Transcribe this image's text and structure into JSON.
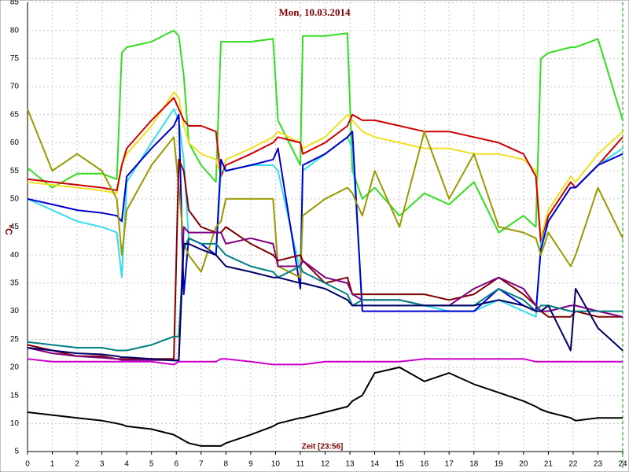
{
  "chart_data": {
    "type": "line",
    "title": "Mon, 10.03.2014",
    "x_label": "Zeit [23:56]",
    "y_label": "°C",
    "x": [
      0,
      1,
      2,
      3,
      3.6,
      3.8,
      4,
      5,
      5.9,
      6.1,
      6.3,
      6.5,
      7,
      7.6,
      7.8,
      8,
      9,
      9.9,
      10.1,
      11,
      11.1,
      12,
      12.9,
      13.1,
      13.5,
      14,
      15,
      16,
      17,
      18,
      19,
      20,
      20.5,
      20.7,
      21,
      21.9,
      22.1,
      23,
      24
    ],
    "xlim": [
      0,
      24
    ],
    "xticks": [
      0,
      1,
      2,
      3,
      4,
      5,
      6,
      7,
      8,
      9,
      10,
      11,
      12,
      13,
      14,
      15,
      16,
      17,
      18,
      19,
      20,
      21,
      22,
      23,
      24
    ],
    "ylim": [
      5,
      85
    ],
    "yticks": [
      5,
      10,
      15,
      20,
      25,
      30,
      35,
      40,
      45,
      50,
      55,
      60,
      65,
      70,
      75,
      80,
      85
    ],
    "grid": true,
    "series": [
      {
        "color": "#33dd22",
        "values": [
          55.5,
          52,
          54.5,
          54.5,
          53.5,
          76,
          77,
          78,
          80,
          79,
          72,
          60,
          56,
          53,
          78,
          78,
          78,
          78.5,
          64,
          56,
          79,
          79,
          79.5,
          55,
          50,
          52,
          47,
          51,
          49,
          53,
          44,
          47,
          45,
          75,
          76,
          77,
          77,
          78.5,
          64
        ]
      },
      {
        "color": "#f0e020",
        "values": [
          53,
          52.5,
          52,
          51.5,
          51,
          56,
          58,
          63,
          69,
          68,
          63,
          60,
          58,
          57,
          54,
          57,
          59,
          61,
          62,
          60,
          59,
          61,
          65,
          64,
          62,
          61,
          60,
          59,
          59,
          58,
          58,
          57,
          55,
          43,
          48,
          54,
          53,
          58,
          62
        ]
      },
      {
        "color": "#cc0000",
        "values": [
          53.5,
          53,
          52.5,
          52,
          51.5,
          56,
          59,
          64,
          68,
          66,
          64,
          63,
          63,
          62,
          54,
          56,
          58,
          60,
          61,
          60,
          58,
          60,
          63,
          65,
          64,
          64,
          63,
          62,
          62,
          61,
          60,
          58,
          54,
          42,
          47,
          53,
          52,
          56,
          61
        ]
      },
      {
        "color": "#33ddee",
        "values": [
          50,
          48,
          46,
          45,
          44,
          36,
          53,
          60,
          66,
          64,
          57,
          43,
          42,
          40,
          55,
          55,
          56,
          56,
          55,
          37,
          55,
          58,
          61,
          59,
          31,
          31,
          31,
          31,
          30,
          30,
          32,
          30,
          29,
          42,
          46,
          52,
          52,
          56,
          59
        ]
      },
      {
        "color": "#0000cc",
        "values": [
          50,
          49,
          48,
          47.5,
          47,
          46,
          54,
          59,
          63,
          65,
          33,
          43,
          42,
          40,
          57,
          55,
          56,
          57,
          59,
          34,
          56,
          58,
          61,
          62,
          30,
          30,
          30,
          30,
          30,
          30,
          34,
          31,
          30,
          41,
          46,
          52,
          52,
          56,
          58
        ]
      },
      {
        "color": "#999900",
        "values": [
          66,
          55,
          58,
          55,
          50,
          40,
          48,
          56,
          61,
          52,
          42,
          40,
          37,
          45,
          46,
          50,
          50,
          50,
          38,
          36,
          47,
          50,
          52,
          51,
          47,
          55,
          45,
          62,
          50,
          58,
          45,
          44,
          43,
          40,
          44,
          38,
          40,
          52,
          43
        ]
      },
      {
        "color": "#800000",
        "values": [
          24,
          23,
          22,
          22,
          21.5,
          21.5,
          21.5,
          21.5,
          21.5,
          57,
          55,
          48,
          45,
          44,
          44,
          45,
          42,
          40,
          39,
          40,
          39,
          35,
          36,
          33,
          33,
          33,
          33,
          33,
          32,
          33,
          36,
          33,
          31,
          30,
          29,
          29,
          30,
          29,
          29
        ]
      },
      {
        "color": "#800080",
        "values": [
          23.5,
          22.5,
          22,
          21.7,
          21.5,
          21.3,
          21.3,
          21.3,
          21.3,
          21.3,
          45,
          44,
          44,
          44,
          44,
          42,
          43,
          42,
          38,
          38,
          39,
          36,
          35,
          33,
          32,
          32,
          32,
          31,
          31,
          34,
          36,
          34,
          31,
          30,
          30,
          31,
          31,
          30,
          29
        ]
      },
      {
        "color": "#008080",
        "values": [
          24.5,
          24,
          23.5,
          23.5,
          23,
          23,
          23,
          24,
          25.5,
          25.5,
          41,
          43,
          42,
          42,
          41,
          40,
          38,
          37,
          36,
          38,
          37,
          35,
          33,
          31,
          32,
          32,
          32,
          31,
          31,
          31,
          34,
          32,
          30,
          31,
          31,
          30,
          30,
          30,
          30
        ]
      },
      {
        "color": "#000066",
        "values": [
          23.5,
          23,
          22.5,
          22.3,
          22,
          21.8,
          21.8,
          21.5,
          21.2,
          21.2,
          42,
          42,
          41,
          40,
          39,
          38,
          37,
          36,
          36,
          35,
          35,
          34,
          32,
          31,
          31,
          31,
          31,
          31,
          31,
          31,
          32,
          31,
          30,
          30,
          31,
          23,
          34,
          27,
          23
        ]
      },
      {
        "color": "#cc00cc",
        "values": [
          21.5,
          21,
          21,
          21,
          21,
          21,
          21,
          21,
          20.5,
          21,
          21,
          21,
          21,
          21,
          21.5,
          21.5,
          21,
          20.5,
          20.5,
          20.5,
          20.5,
          21,
          21,
          21,
          21,
          21,
          21,
          21.5,
          21.5,
          21.5,
          21.5,
          21.5,
          21,
          21,
          21,
          21,
          21,
          21,
          21
        ]
      },
      {
        "color": "#000000",
        "values": [
          12,
          11.5,
          11,
          10.5,
          10,
          9.8,
          9.5,
          9,
          8,
          7.5,
          7,
          6.5,
          6,
          6,
          6,
          6.5,
          8,
          9.5,
          10,
          11,
          11,
          12,
          13,
          14,
          15,
          19,
          20,
          17.5,
          19,
          17,
          15.5,
          14,
          13,
          12.5,
          12,
          11,
          10.5,
          11,
          11
        ]
      }
    ]
  }
}
